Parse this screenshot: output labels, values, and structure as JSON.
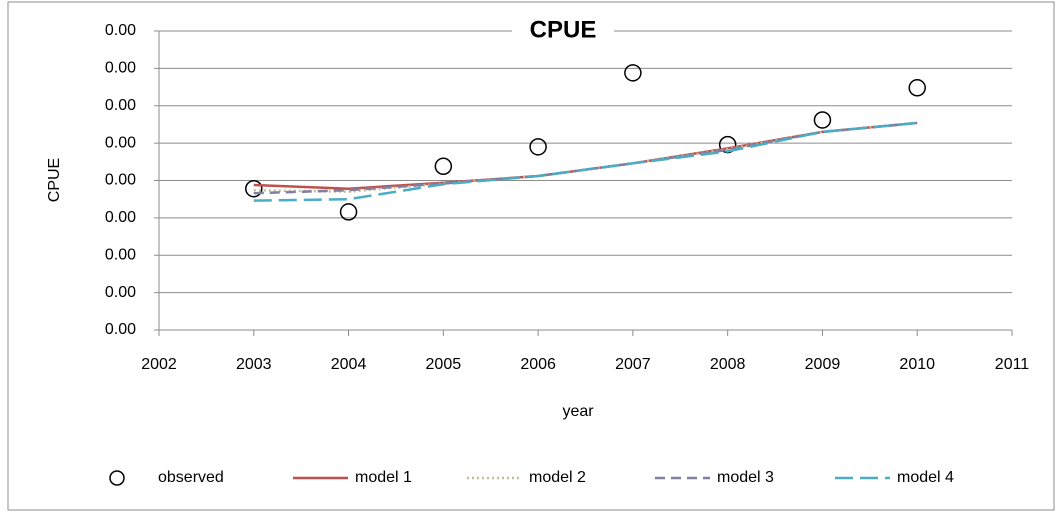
{
  "chart_data": {
    "type": "line",
    "title": "CPUE",
    "x_label": "year",
    "y_label": "CPUE",
    "x": [
      2003,
      2004,
      2005,
      2006,
      2007,
      2008,
      2009,
      2010
    ],
    "series": [
      {
        "name": "observed",
        "color": "#000000",
        "style": "marker",
        "values": [
          0.00189,
          0.00158,
          0.00219,
          0.00245,
          0.00344,
          0.00248,
          0.00281,
          0.00324
        ]
      },
      {
        "name": "model 1",
        "color": "#c0504d",
        "style": "solid",
        "values": [
          0.00194,
          0.00189,
          0.00197,
          0.00206,
          0.00223,
          0.00243,
          0.00265,
          0.00277
        ]
      },
      {
        "name": "model 2",
        "color": "#c4bd97",
        "style": "dotted",
        "values": [
          0.00187,
          0.00185,
          0.00196,
          0.00206,
          0.00223,
          0.00242,
          0.00265,
          0.00277
        ]
      },
      {
        "name": "model 3",
        "color": "#7f7f9f",
        "style": "dashed",
        "values": [
          0.00183,
          0.00187,
          0.00196,
          0.00206,
          0.00223,
          0.00241,
          0.00265,
          0.00277
        ]
      },
      {
        "name": "model 4",
        "color": "#4bacc6",
        "style": "longdash",
        "values": [
          0.00173,
          0.00175,
          0.00195,
          0.00206,
          0.00223,
          0.00239,
          0.00265,
          0.00277
        ]
      }
    ],
    "xlim": [
      2002,
      2011
    ],
    "xticks": [
      2002,
      2003,
      2004,
      2005,
      2006,
      2007,
      2008,
      2009,
      2010,
      2011
    ],
    "ylim": [
      0,
      0.004
    ],
    "yticks": [
      {
        "value": 0,
        "label": "0.00"
      },
      {
        "value": 0.0005,
        "label": "0.00"
      },
      {
        "value": 0.001,
        "label": "0.00"
      },
      {
        "value": 0.0015,
        "label": "0.00"
      },
      {
        "value": 0.002,
        "label": "0.00"
      },
      {
        "value": 0.0025,
        "label": "0.00"
      },
      {
        "value": 0.003,
        "label": "0.00"
      },
      {
        "value": 0.0035,
        "label": "0.00"
      },
      {
        "value": 0.004,
        "label": "0.00"
      }
    ],
    "grid": true,
    "legend": "bottom"
  }
}
